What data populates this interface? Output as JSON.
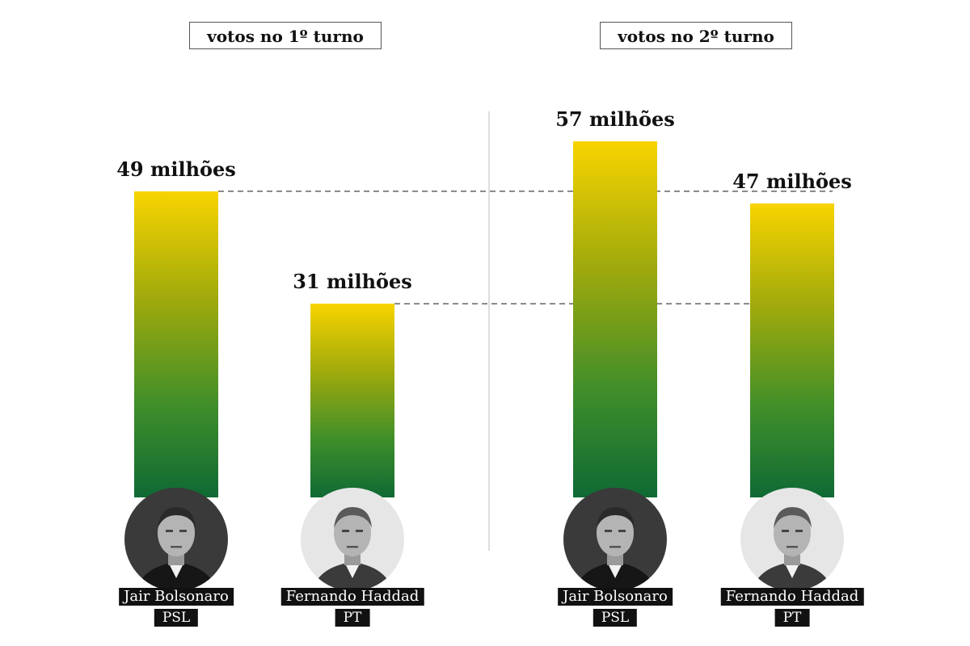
{
  "panels": [
    {
      "title": "votos no 1º turno"
    },
    {
      "title": "votos no 2º turno"
    }
  ],
  "chart_data": [
    {
      "type": "bar",
      "title": "votos no 1º turno",
      "categories": [
        "Jair Bolsonaro",
        "Fernando Haddad"
      ],
      "parties": [
        "PSL",
        "PT"
      ],
      "values": [
        49,
        31
      ],
      "value_labels": [
        "49 milhões",
        "31 milhões"
      ],
      "ylim": [
        0,
        57
      ]
    },
    {
      "type": "bar",
      "title": "votos no 2º turno",
      "categories": [
        "Jair Bolsonaro",
        "Fernando Haddad"
      ],
      "parties": [
        "PSL",
        "PT"
      ],
      "values": [
        57,
        47
      ],
      "value_labels": [
        "57 milhões",
        "47 milhões"
      ],
      "ylim": [
        0,
        57
      ]
    }
  ],
  "colors": {
    "bar_top": "#f8d400",
    "bar_bottom": "#0f6a34",
    "tag_background": "#111111",
    "reference_line": "#444444"
  },
  "icons": {
    "bolsonaro": "portrait-icon",
    "haddad": "portrait-icon"
  }
}
